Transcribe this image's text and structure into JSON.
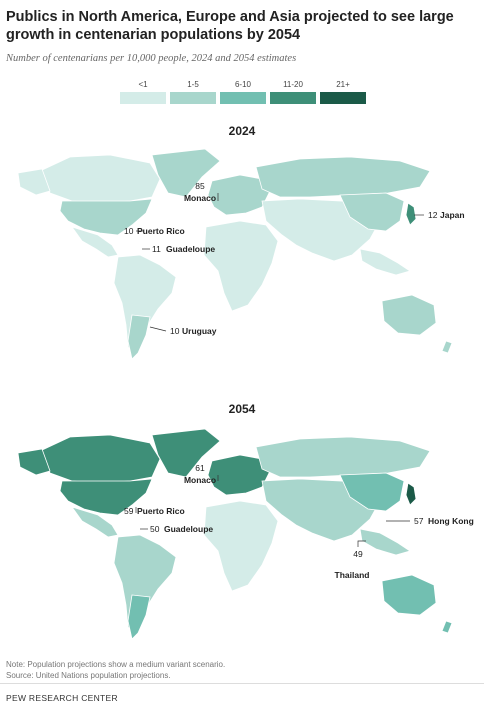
{
  "title": "Publics in North America, Europe and Asia projected to see large growth in centenarian populations by 2054",
  "subtitle": "Number of centenarians per 10,000 people, 2024 and 2054 estimates",
  "legend": [
    {
      "label": "<1",
      "color": "#d4ece8"
    },
    {
      "label": "1-5",
      "color": "#a8d6cc"
    },
    {
      "label": "6-10",
      "color": "#72bfb1"
    },
    {
      "label": "11-20",
      "color": "#3e8f78"
    },
    {
      "label": "21+",
      "color": "#1b5a48"
    }
  ],
  "maps": [
    {
      "year": "2024",
      "regions": {
        "north_america": "<1",
        "usa": "1-5",
        "caribbean": "<1",
        "south_america": "<1",
        "southern_cone": "1-5",
        "europe": "1-5",
        "russia": "1-5",
        "asia": "<1",
        "east_asia": "1-5",
        "japan": "11-20",
        "africa": "<1",
        "oceania": "1-5",
        "greenland": "1-5"
      },
      "annotations": [
        {
          "value": "85",
          "place": "Monaco"
        },
        {
          "value": "10",
          "place": "Puerto Rico"
        },
        {
          "value": "11",
          "place": "Guadeloupe"
        },
        {
          "value": "12",
          "place": "Japan"
        },
        {
          "value": "10",
          "place": "Uruguay"
        }
      ]
    },
    {
      "year": "2054",
      "regions": {
        "north_america": "11-20",
        "usa": "11-20",
        "caribbean": "1-5",
        "south_america": "1-5",
        "southern_cone": "6-10",
        "europe": "11-20",
        "russia": "1-5",
        "asia": "1-5",
        "east_asia": "6-10",
        "japan": "21+",
        "africa": "<1",
        "oceania": "6-10",
        "greenland": "11-20"
      },
      "annotations": [
        {
          "value": "61",
          "place": "Monaco"
        },
        {
          "value": "59",
          "place": "Puerto Rico"
        },
        {
          "value": "50",
          "place": "Guadeloupe"
        },
        {
          "value": "57",
          "place": "Hong Kong"
        },
        {
          "value": "49",
          "place": "Thailand"
        }
      ]
    }
  ],
  "notes": [
    "Note: Population projections show a medium variant scenario.",
    "Source: United Nations population projections."
  ],
  "credit": "PEW RESEARCH CENTER"
}
